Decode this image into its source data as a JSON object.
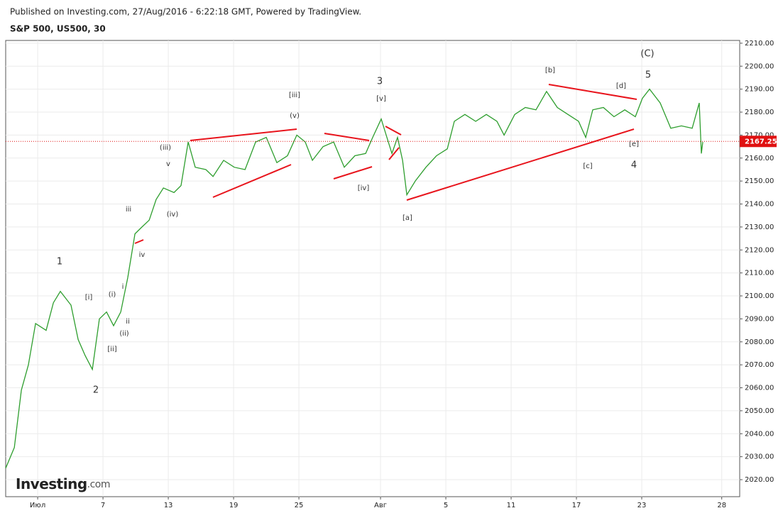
{
  "chart_data": {
    "type": "line",
    "source_note": "Published on Investing.com, 27/Aug/2016 - 6:22:18 GMT, Powered by TradingView.",
    "title": "S&P 500, US500, 30",
    "logo": {
      "name": "Investing",
      "suffix": ".com"
    },
    "color": "#2e9e2e",
    "last_price": 2167.25,
    "last_price_color": "#e01010",
    "x": [
      -1.96,
      -1.43,
      -1,
      -0.57,
      -0.13,
      0.52,
      0.96,
      1.39,
      2.04,
      2.48,
      2.91,
      3.35,
      3.78,
      4.22,
      4.65,
      5.09,
      5.52,
      5.96,
      6.39,
      6.83,
      7.26,
      7.7,
      8.35,
      8.78,
      9.22,
      9.65,
      10.3,
      10.74,
      11.39,
      12.04,
      12.7,
      13.35,
      14,
      14.65,
      15.3,
      15.87,
      16.39,
      16.83,
      17.48,
      18.13,
      18.78,
      19.43,
      20.09,
      20.52,
      21.04,
      21.39,
      21.7,
      22.04,
      22.35,
      22.61,
      23.13,
      23.78,
      24.43,
      25.09,
      25.52,
      26.17,
      26.83,
      27.48,
      28.13,
      28.57,
      29.22,
      29.87,
      30.52,
      31.17,
      31.83,
      32.48,
      33.13,
      33.57,
      34,
      34.65,
      35.3,
      35.96,
      36.61,
      37.04,
      37.48,
      38.13,
      38.78,
      39.43,
      40.09,
      40.52,
      40.65,
      40.74
    ],
    "values": [
      2025,
      2034,
      2059,
      2070,
      2088,
      2085,
      2097,
      2102,
      2096,
      2081,
      2074,
      2068,
      2090,
      2093,
      2087,
      2093,
      2108,
      2127,
      2130,
      2133,
      2142,
      2147,
      2145,
      2148,
      2167,
      2156,
      2155,
      2152,
      2159,
      2156,
      2155,
      2167,
      2169,
      2158,
      2161,
      2170,
      2167,
      2159,
      2165,
      2167,
      2156,
      2161,
      2162,
      2169,
      2177,
      2169,
      2162,
      2169,
      2159,
      2144,
      2150,
      2156,
      2161,
      2164,
      2176,
      2179,
      2176,
      2179,
      2176,
      2170,
      2179,
      2182,
      2181,
      2189,
      2182,
      2179,
      2176,
      2169,
      2181,
      2182,
      2178,
      2181,
      2178,
      2186,
      2190,
      2184,
      2173,
      2174,
      2173,
      2184,
      2162,
      2167
    ],
    "xlim": [
      -1.96,
      43
    ],
    "xticks": [
      {
        "value": 0,
        "label": "Июл"
      },
      {
        "value": 4,
        "label": "7"
      },
      {
        "value": 8,
        "label": "13"
      },
      {
        "value": 12,
        "label": "19"
      },
      {
        "value": 16,
        "label": "25"
      },
      {
        "value": 21,
        "label": "Авг"
      },
      {
        "value": 25,
        "label": "5"
      },
      {
        "value": 29,
        "label": "11"
      },
      {
        "value": 33,
        "label": "17"
      },
      {
        "value": 37,
        "label": "23"
      },
      {
        "value": 41.9,
        "label": "28"
      }
    ],
    "ylim": [
      2012.6,
      2211.2
    ],
    "yticks": [
      {
        "value": 2020,
        "label": "2020.00"
      },
      {
        "value": 2030,
        "label": "2030.00"
      },
      {
        "value": 2040,
        "label": "2040.00"
      },
      {
        "value": 2050,
        "label": "2050.00"
      },
      {
        "value": 2060,
        "label": "2060.00"
      },
      {
        "value": 2070,
        "label": "2070.00"
      },
      {
        "value": 2080,
        "label": "2080.00"
      },
      {
        "value": 2090,
        "label": "2090.00"
      },
      {
        "value": 2100,
        "label": "2100.00"
      },
      {
        "value": 2110,
        "label": "2110.00"
      },
      {
        "value": 2120,
        "label": "2120.00"
      },
      {
        "value": 2130,
        "label": "2130.00"
      },
      {
        "value": 2140,
        "label": "2140.00"
      },
      {
        "value": 2150,
        "label": "2150.00"
      },
      {
        "value": 2160,
        "label": "2160.00"
      },
      {
        "value": 2170,
        "label": "2170.00"
      },
      {
        "value": 2180,
        "label": "2180.00"
      },
      {
        "value": 2190,
        "label": "2190.00"
      },
      {
        "value": 2200,
        "label": "2200.00"
      },
      {
        "value": 2210,
        "label": "2210.00"
      }
    ],
    "grid": true,
    "annotations": [
      "(C)",
      "5",
      "[b]",
      "[d]",
      "[e]",
      "[c]",
      "4",
      "3",
      "[v]",
      "[iii]",
      "(v)",
      "(iii)",
      "v",
      "(iv)",
      "[iv]",
      "[a]",
      "iii",
      "iv",
      "1",
      "[i]",
      "(i)",
      "i",
      "ii",
      "(ii)",
      "[ii]",
      "2"
    ]
  }
}
